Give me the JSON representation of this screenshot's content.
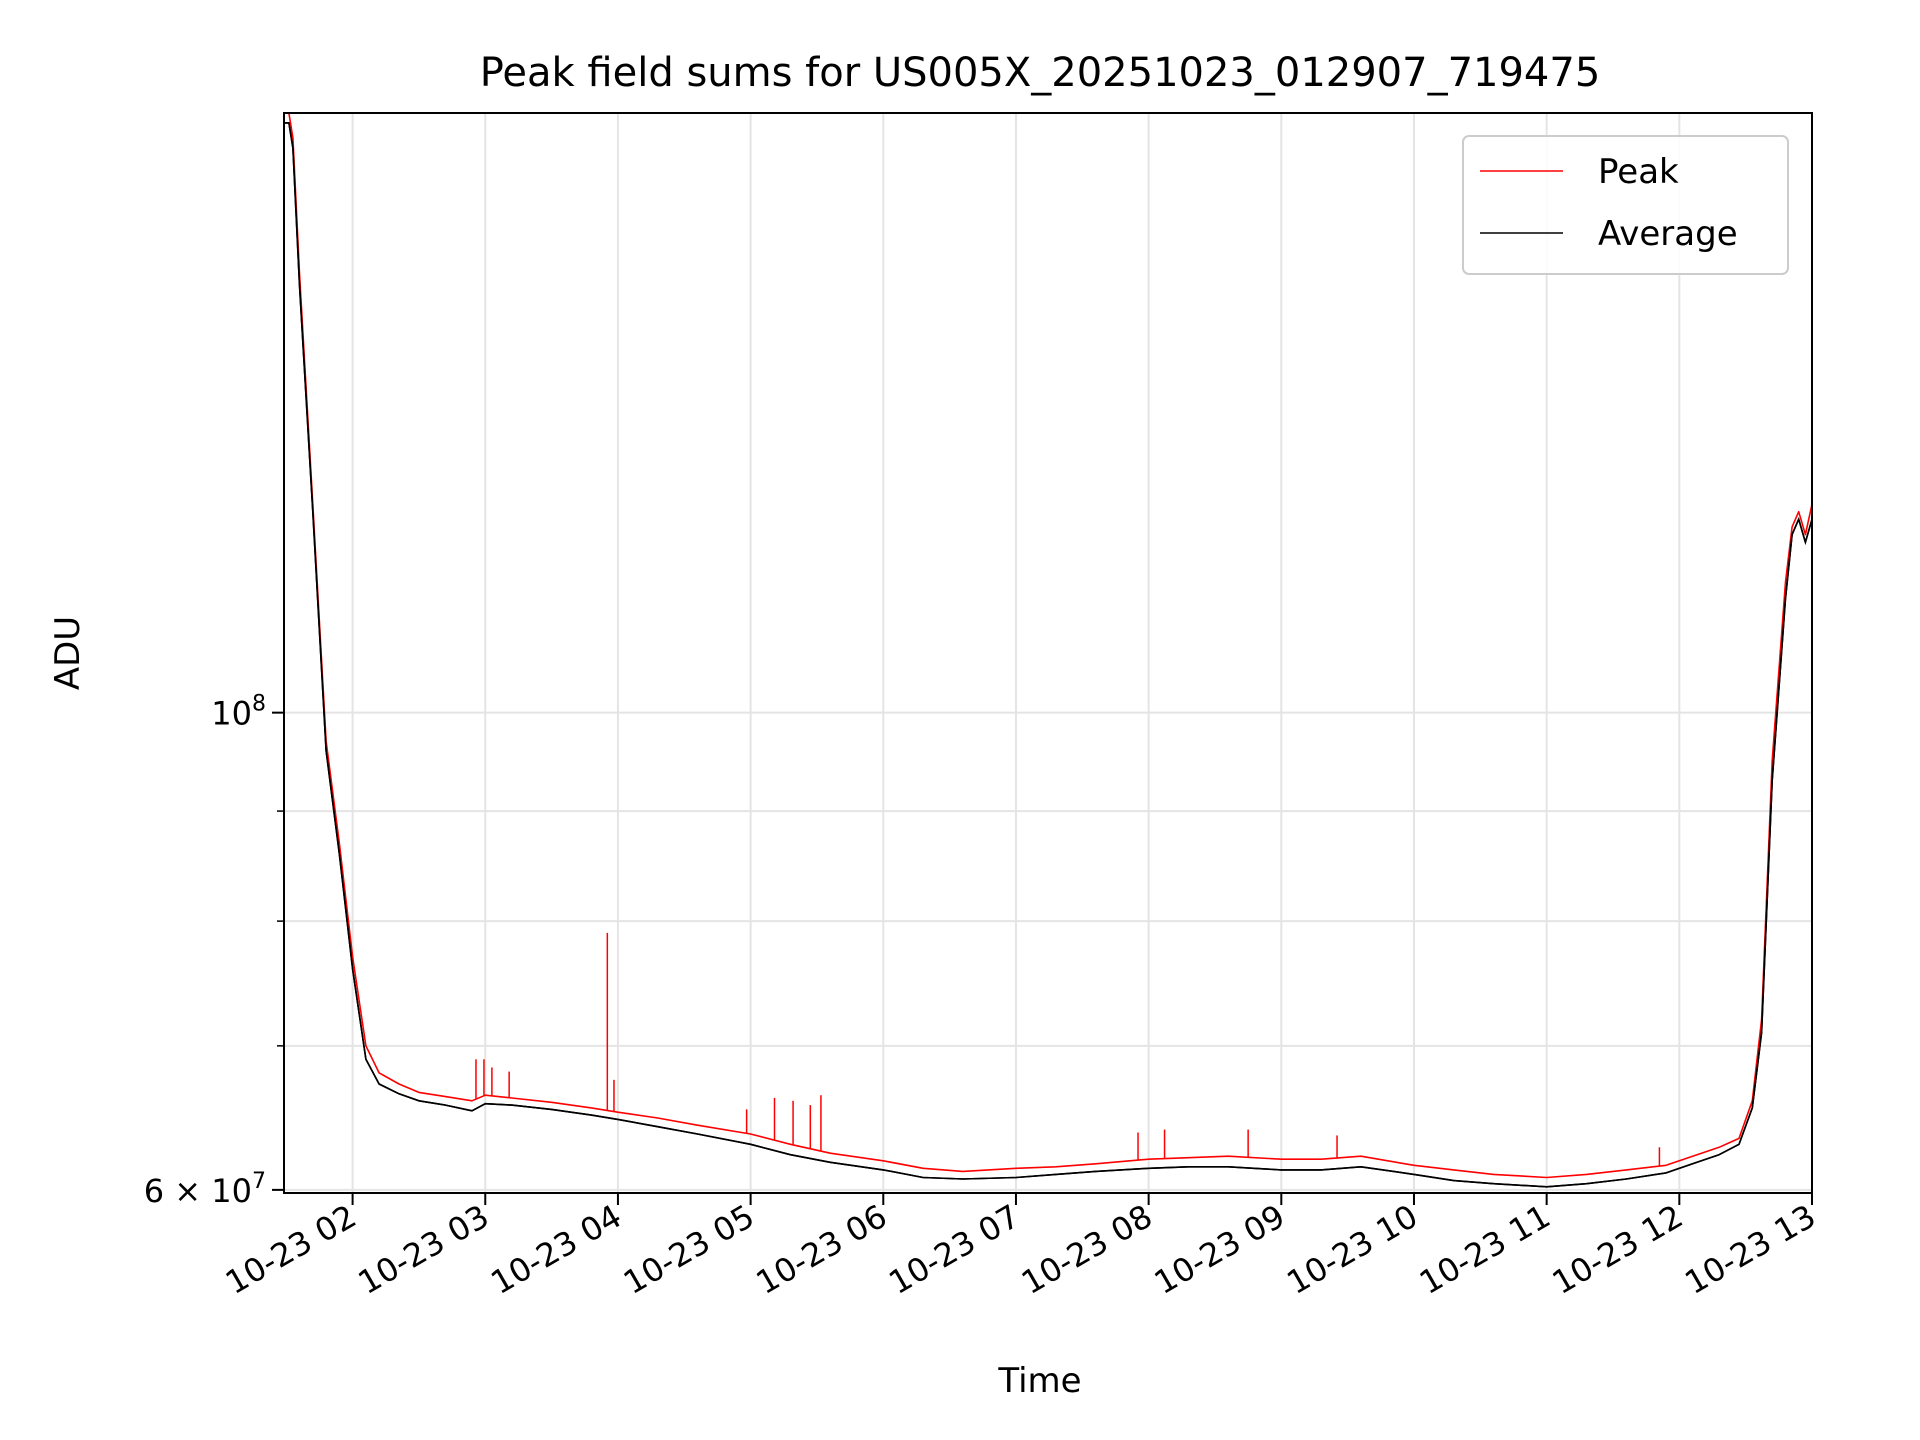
{
  "chart_data": {
    "type": "line",
    "title": "Peak field sums for US005X_20251023_012907_719475",
    "xlabel": "Time",
    "ylabel": "ADU",
    "yscale": "log",
    "xlim": [
      1.483,
      13.0
    ],
    "ylim": [
      59800000,
      190000000
    ],
    "x_unit": "hours after 2025-10-23 00:00",
    "grid": true,
    "legend_position": "upper right",
    "x_ticks": [
      {
        "value": 2,
        "label": "10-23 02"
      },
      {
        "value": 3,
        "label": "10-23 03"
      },
      {
        "value": 4,
        "label": "10-23 04"
      },
      {
        "value": 5,
        "label": "10-23 05"
      },
      {
        "value": 6,
        "label": "10-23 06"
      },
      {
        "value": 7,
        "label": "10-23 07"
      },
      {
        "value": 8,
        "label": "10-23 08"
      },
      {
        "value": 9,
        "label": "10-23 09"
      },
      {
        "value": 10,
        "label": "10-23 10"
      },
      {
        "value": 11,
        "label": "10-23 11"
      },
      {
        "value": 12,
        "label": "10-23 12"
      },
      {
        "value": 13,
        "label": "10-23 13"
      }
    ],
    "y_major_ticks": [
      {
        "value": 60000000,
        "label": "6 × 10",
        "exp": "7"
      },
      {
        "value": 100000000,
        "label": "10",
        "exp": "8"
      }
    ],
    "y_minor_ticks": [
      70000000,
      80000000,
      90000000
    ],
    "series": [
      {
        "name": "Peak",
        "color": "#ff0000",
        "x": [
          1.483,
          1.52,
          1.55,
          1.6,
          1.7,
          1.8,
          1.9,
          2.0,
          2.1,
          2.2,
          2.35,
          2.5,
          2.7,
          2.9,
          3.0,
          3.2,
          3.5,
          3.8,
          4.0,
          4.3,
          4.6,
          5.0,
          5.3,
          5.6,
          6.0,
          6.3,
          6.6,
          7.0,
          7.3,
          7.6,
          8.0,
          8.3,
          8.6,
          9.0,
          9.3,
          9.6,
          10.0,
          10.3,
          10.6,
          11.0,
          11.3,
          11.6,
          11.9,
          12.1,
          12.3,
          12.45,
          12.55,
          12.62,
          12.7,
          12.8,
          12.85,
          12.9,
          12.95,
          13.0
        ],
        "values": [
          190000000,
          190000000,
          185000000,
          160000000,
          125000000,
          97000000,
          87000000,
          77000000,
          70000000,
          68000000,
          67200000,
          66600000,
          66300000,
          66000000,
          66400000,
          66200000,
          65900000,
          65500000,
          65200000,
          64800000,
          64300000,
          63700000,
          63000000,
          62400000,
          61900000,
          61400000,
          61200000,
          61400000,
          61500000,
          61700000,
          62000000,
          62100000,
          62200000,
          62000000,
          62000000,
          62200000,
          61600000,
          61300000,
          61000000,
          60800000,
          61000000,
          61300000,
          61600000,
          62200000,
          62800000,
          63400000,
          66000000,
          72000000,
          95000000,
          115000000,
          122000000,
          124000000,
          121000000,
          125000000
        ]
      },
      {
        "name": "Average",
        "color": "#000000",
        "x": [
          1.483,
          1.52,
          1.55,
          1.6,
          1.7,
          1.8,
          1.9,
          2.0,
          2.1,
          2.2,
          2.35,
          2.5,
          2.7,
          2.9,
          3.0,
          3.2,
          3.5,
          3.8,
          4.0,
          4.3,
          4.6,
          5.0,
          5.3,
          5.6,
          6.0,
          6.3,
          6.6,
          7.0,
          7.3,
          7.6,
          8.0,
          8.3,
          8.6,
          9.0,
          9.3,
          9.6,
          10.0,
          10.3,
          10.6,
          11.0,
          11.3,
          11.6,
          11.9,
          12.1,
          12.3,
          12.45,
          12.55,
          12.62,
          12.7,
          12.8,
          12.85,
          12.9,
          12.95,
          13.0
        ],
        "values": [
          188000000,
          188000000,
          183000000,
          158000000,
          124000000,
          96000000,
          86000000,
          76000000,
          69000000,
          67200000,
          66500000,
          66000000,
          65700000,
          65300000,
          65800000,
          65700000,
          65400000,
          65000000,
          64700000,
          64200000,
          63700000,
          63000000,
          62300000,
          61800000,
          61300000,
          60800000,
          60700000,
          60800000,
          61000000,
          61200000,
          61400000,
          61500000,
          61500000,
          61300000,
          61300000,
          61500000,
          61000000,
          60600000,
          60400000,
          60200000,
          60400000,
          60700000,
          61100000,
          61700000,
          62300000,
          63000000,
          65500000,
          71000000,
          93000000,
          113000000,
          121000000,
          123000000,
          120000000,
          123000000
        ]
      }
    ],
    "spikes": [
      {
        "x": 2.93,
        "value": 69000000
      },
      {
        "x": 2.99,
        "value": 69000000
      },
      {
        "x": 3.05,
        "value": 68400000
      },
      {
        "x": 3.18,
        "value": 68100000
      },
      {
        "x": 3.92,
        "value": 79000000
      },
      {
        "x": 3.97,
        "value": 67500000
      },
      {
        "x": 4.97,
        "value": 65400000
      },
      {
        "x": 5.18,
        "value": 66200000
      },
      {
        "x": 5.32,
        "value": 66000000
      },
      {
        "x": 5.45,
        "value": 65700000
      },
      {
        "x": 5.53,
        "value": 66400000
      },
      {
        "x": 7.92,
        "value": 63800000
      },
      {
        "x": 8.12,
        "value": 64000000
      },
      {
        "x": 8.75,
        "value": 64000000
      },
      {
        "x": 9.42,
        "value": 63600000
      },
      {
        "x": 11.85,
        "value": 62800000
      }
    ]
  }
}
